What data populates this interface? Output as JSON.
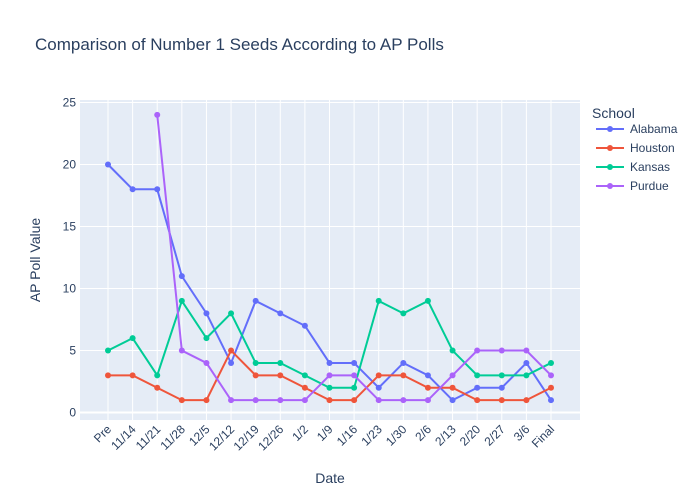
{
  "chart_data": {
    "type": "line",
    "title": "Comparison of Number 1 Seeds According to AP Polls",
    "xlabel": "Date",
    "ylabel": "AP Poll Value",
    "ylim": [
      -0.6,
      25.2
    ],
    "yticks": [
      0,
      5,
      10,
      15,
      20,
      25
    ],
    "grid": true,
    "legend_title": "School",
    "legend_position": "right",
    "categories": [
      "Pre",
      "11/14",
      "11/21",
      "11/28",
      "12/5",
      "12/12",
      "12/19",
      "12/26",
      "1/2",
      "1/9",
      "1/16",
      "1/23",
      "1/30",
      "2/6",
      "2/13",
      "2/20",
      "2/27",
      "3/6",
      "Final"
    ],
    "series": [
      {
        "name": "Alabama",
        "color": "#636efa",
        "values": [
          20,
          18,
          18,
          11,
          8,
          4,
          9,
          8,
          7,
          4,
          4,
          2,
          4,
          3,
          1,
          2,
          2,
          4,
          1
        ]
      },
      {
        "name": "Houston",
        "color": "#EF553B",
        "values": [
          3,
          3,
          2,
          1,
          1,
          5,
          3,
          3,
          2,
          1,
          1,
          3,
          3,
          2,
          2,
          1,
          1,
          1,
          2
        ]
      },
      {
        "name": "Kansas",
        "color": "#00cc96",
        "values": [
          5,
          6,
          3,
          9,
          6,
          8,
          4,
          4,
          3,
          2,
          2,
          9,
          8,
          9,
          5,
          3,
          3,
          3,
          4
        ]
      },
      {
        "name": "Purdue",
        "color": "#ab63fa",
        "values": [
          null,
          null,
          24,
          5,
          4,
          1,
          1,
          1,
          1,
          3,
          3,
          1,
          1,
          1,
          3,
          5,
          5,
          5,
          3
        ]
      }
    ]
  }
}
